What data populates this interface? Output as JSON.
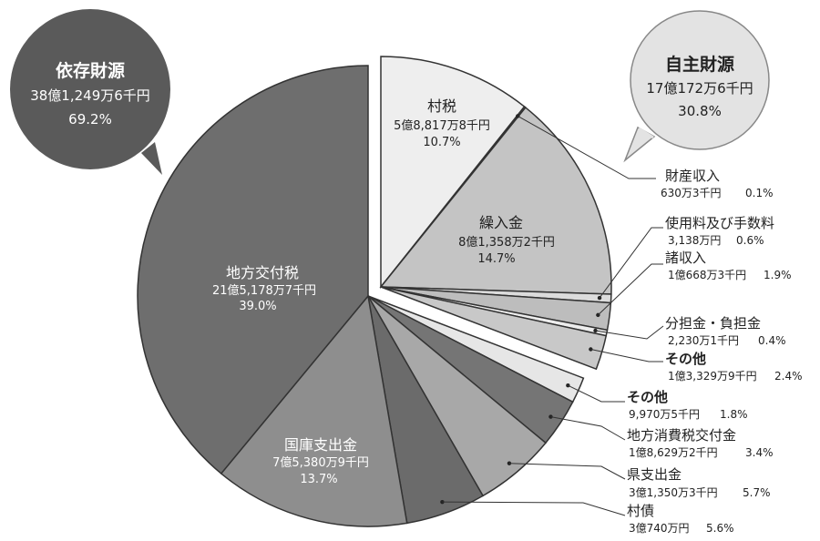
{
  "chart_data": {
    "type": "pie",
    "groups": [
      {
        "name": "依存財源",
        "amount": "38億1,249万6千円",
        "percent": "69.2%"
      },
      {
        "name": "自主財源",
        "amount": "17億172万6千円",
        "percent": "30.8%"
      }
    ],
    "slices": [
      {
        "label": "村税",
        "amount": "5億8,817万8千円",
        "percent": "10.7%",
        "value": 10.7,
        "group": "自主財源",
        "color": "#eeeeee"
      },
      {
        "label": "財産収入",
        "amount": "630万3千円",
        "percent": "0.1%",
        "value": 0.1,
        "group": "自主財源",
        "color": "#8a8a8a"
      },
      {
        "label": "繰入金",
        "amount": "8億1,358万2千円",
        "percent": "14.7%",
        "value": 14.7,
        "group": "自主財源",
        "color": "#c4c4c4"
      },
      {
        "label": "使用料及び手数料",
        "amount": "3,138万円",
        "percent": "0.6%",
        "value": 0.6,
        "group": "自主財源",
        "color": "#dcdcdc"
      },
      {
        "label": "諸収入",
        "amount": "1億668万3千円",
        "percent": "1.9%",
        "value": 1.9,
        "group": "自主財源",
        "color": "#bdbdbd"
      },
      {
        "label": "分担金・負担金",
        "amount": "2,230万1千円",
        "percent": "0.4%",
        "value": 0.4,
        "group": "自主財源",
        "color": "#ededed"
      },
      {
        "label": "その他",
        "amount": "1億3,329万9千円",
        "percent": "2.4%",
        "value": 2.4,
        "group": "自主財源",
        "color": "#c8c8c8"
      },
      {
        "label": "その他",
        "amount": "9,970万5千円",
        "percent": "1.8%",
        "value": 1.8,
        "group": "依存財源",
        "color": "#e6e6e6"
      },
      {
        "label": "地方消費税交付金",
        "amount": "1億8,629万2千円",
        "percent": "3.4%",
        "value": 3.4,
        "group": "依存財源",
        "color": "#757575"
      },
      {
        "label": "県支出金",
        "amount": "3億1,350万3千円",
        "percent": "5.7%",
        "value": 5.7,
        "group": "依存財源",
        "color": "#a8a8a8"
      },
      {
        "label": "村債",
        "amount": "3億740万円",
        "percent": "5.6%",
        "value": 5.6,
        "group": "依存財源",
        "color": "#6b6b6b"
      },
      {
        "label": "国庫支出金",
        "amount": "7億5,380万9千円",
        "percent": "13.7%",
        "value": 13.7,
        "group": "依存財源",
        "color": "#8e8e8e"
      },
      {
        "label": "地方交付税",
        "amount": "21億5,178万7千円",
        "percent": "39.0%",
        "value": 39.0,
        "group": "依存財源",
        "color": "#6e6e6e"
      }
    ]
  }
}
